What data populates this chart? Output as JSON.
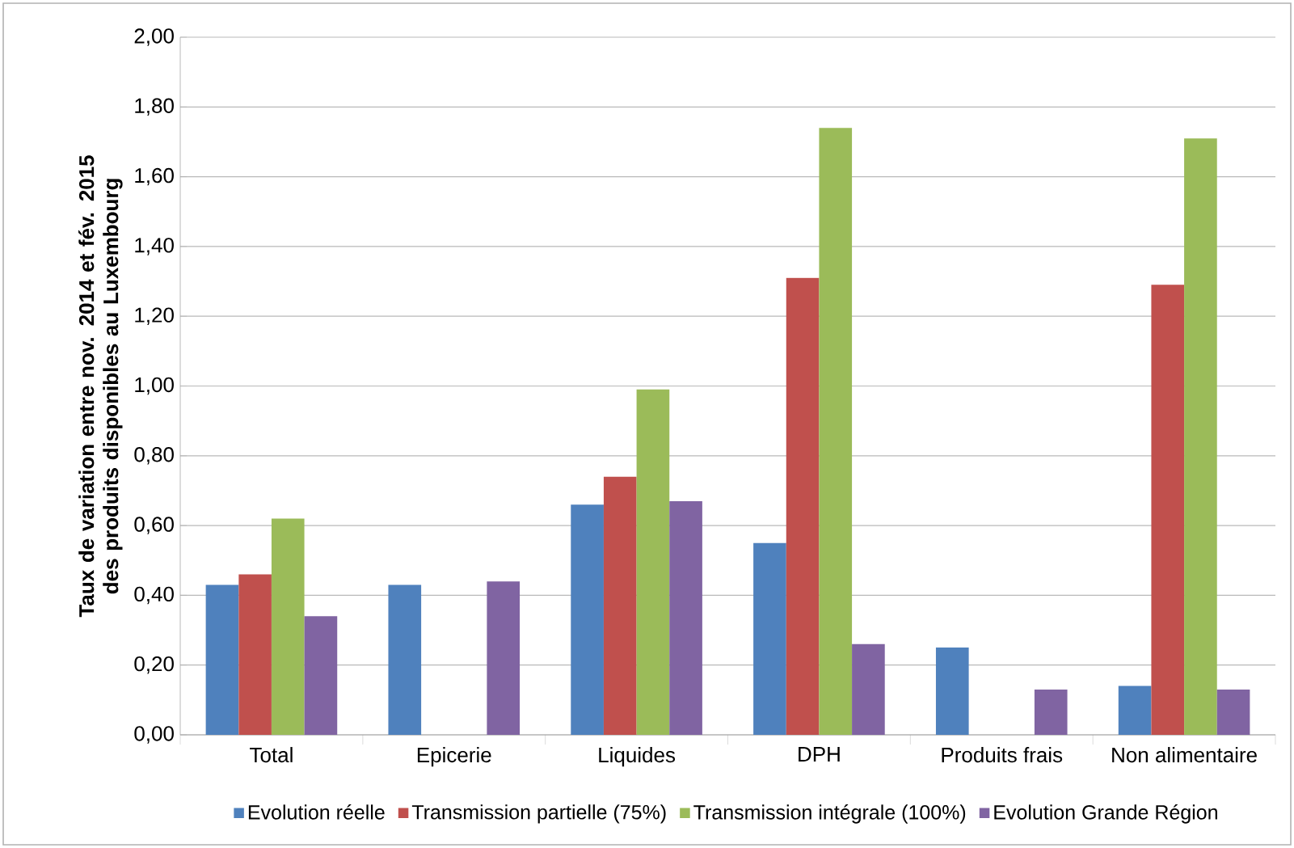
{
  "chart_data": {
    "type": "bar",
    "ylabel": "Taux de variation entre nov. 2014 et fév. 2015 des produits disponibles au Luxembourg",
    "categories": [
      "Total",
      "Epicerie",
      "Liquides",
      "DPH",
      "Produits frais",
      "Non alimentaire"
    ],
    "series": [
      {
        "name": "Evolution réelle",
        "color": "#4f81bd",
        "values": [
          0.43,
          0.43,
          0.66,
          0.55,
          0.25,
          0.14
        ]
      },
      {
        "name": "Transmission partielle (75%)",
        "color": "#c0504d",
        "values": [
          0.46,
          null,
          0.74,
          1.31,
          null,
          1.29
        ]
      },
      {
        "name": "Transmission intégrale (100%)",
        "color": "#9bbb59",
        "values": [
          0.62,
          null,
          0.99,
          1.74,
          null,
          1.71
        ]
      },
      {
        "name": "Evolution Grande Région",
        "color": "#8064a2",
        "values": [
          0.34,
          0.44,
          0.67,
          0.26,
          0.13,
          0.13
        ]
      }
    ],
    "ylim": [
      0,
      2
    ],
    "yticks": [
      {
        "value": 0,
        "label": "0,00"
      },
      {
        "value": 0.2,
        "label": "0,20"
      },
      {
        "value": 0.4,
        "label": "0,40"
      },
      {
        "value": 0.6,
        "label": "0,60"
      },
      {
        "value": 0.8,
        "label": "0,80"
      },
      {
        "value": 1.0,
        "label": "1,00"
      },
      {
        "value": 1.2,
        "label": "1,20"
      },
      {
        "value": 1.4,
        "label": "1,40"
      },
      {
        "value": 1.6,
        "label": "1,60"
      },
      {
        "value": 1.8,
        "label": "1,80"
      },
      {
        "value": 2.0,
        "label": "2,00"
      }
    ],
    "grid": "y",
    "legend": "bottom"
  }
}
